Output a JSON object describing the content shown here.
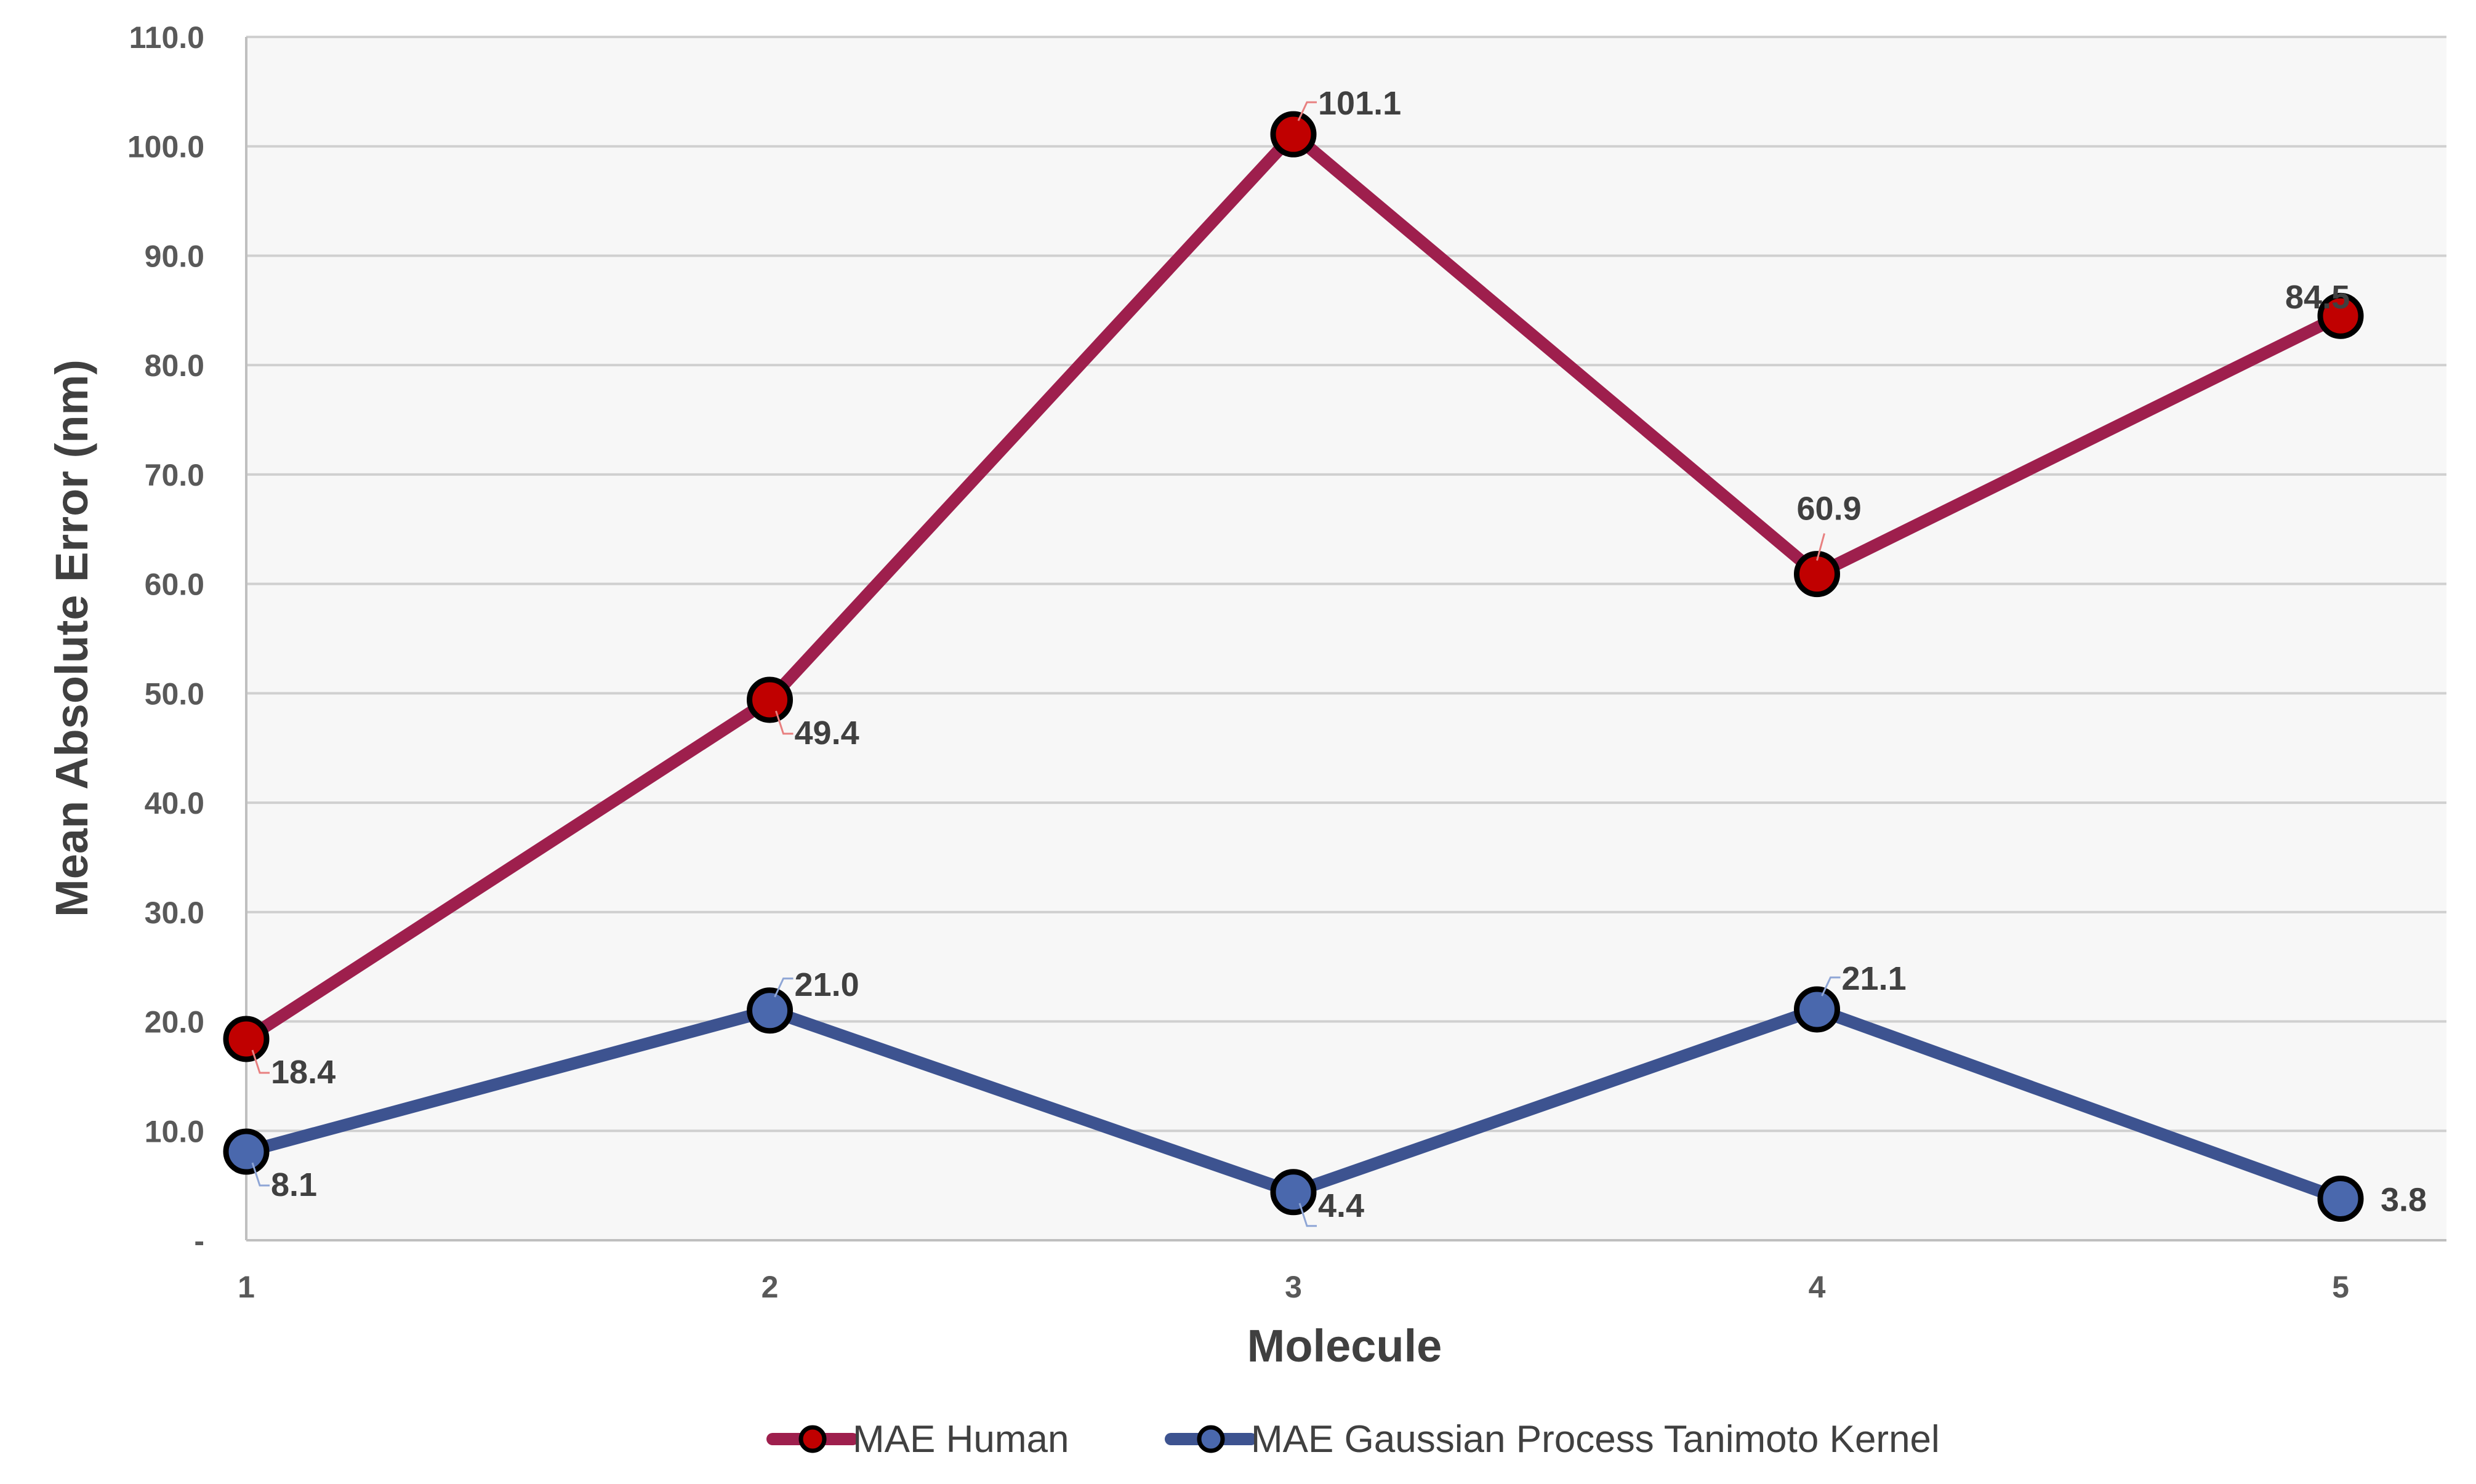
{
  "chart_data": {
    "type": "line",
    "x": [
      "1",
      "2",
      "3",
      "4",
      "5"
    ],
    "xlabel": "Molecule",
    "ylabel": "Mean Absolute Error (nm)",
    "ylim": [
      0,
      110
    ],
    "yticks": [
      0,
      10,
      20,
      30,
      40,
      50,
      60,
      70,
      80,
      90,
      100,
      110
    ],
    "ytick_labels": [
      "-",
      "10.0",
      "20.0",
      "30.0",
      "40.0",
      "50.0",
      "60.0",
      "70.0",
      "80.0",
      "90.0",
      "100.0",
      "110.0"
    ],
    "grid": true,
    "legend_position": "bottom",
    "series": [
      {
        "name": "MAE Human",
        "values": [
          18.4,
          49.4,
          101.1,
          60.9,
          84.5
        ],
        "labels": [
          "18.4",
          "49.4",
          "101.1",
          "60.9",
          "84.5"
        ],
        "line_color": "#9E1F4D",
        "marker_color": "#C00000",
        "leader_color": "#E88080"
      },
      {
        "name": "MAE Gaussian Process Tanimoto Kernel",
        "values": [
          8.1,
          21.0,
          4.4,
          21.1,
          3.8
        ],
        "labels": [
          "8.1",
          "21.0",
          "4.4",
          "21.1",
          "3.8"
        ],
        "line_color": "#3D5390",
        "marker_color": "#4A68AD",
        "leader_color": "#8FA6D6"
      }
    ]
  }
}
